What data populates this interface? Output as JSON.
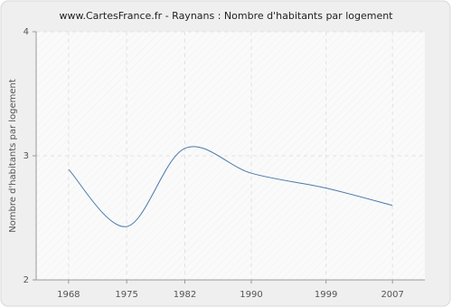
{
  "chart_data": {
    "type": "line",
    "title": "www.CartesFrance.fr - Raynans : Nombre d'habitants par logement",
    "y_label": "Nombre d'habitants par logement",
    "x": [
      1968,
      1975,
      1982,
      1990,
      1999,
      2007
    ],
    "series": [
      {
        "name": "Raynans",
        "color": "#4a7aaa",
        "values": [
          2.89,
          2.43,
          3.06,
          2.86,
          2.74,
          2.6
        ]
      }
    ],
    "xlim": [
      1964.1,
      2010.9
    ],
    "xticks": [
      1968,
      1975,
      1982,
      1990,
      1999,
      2007
    ],
    "ylim": [
      2,
      4
    ],
    "yticks": [
      2,
      3,
      4
    ],
    "grid": true
  }
}
